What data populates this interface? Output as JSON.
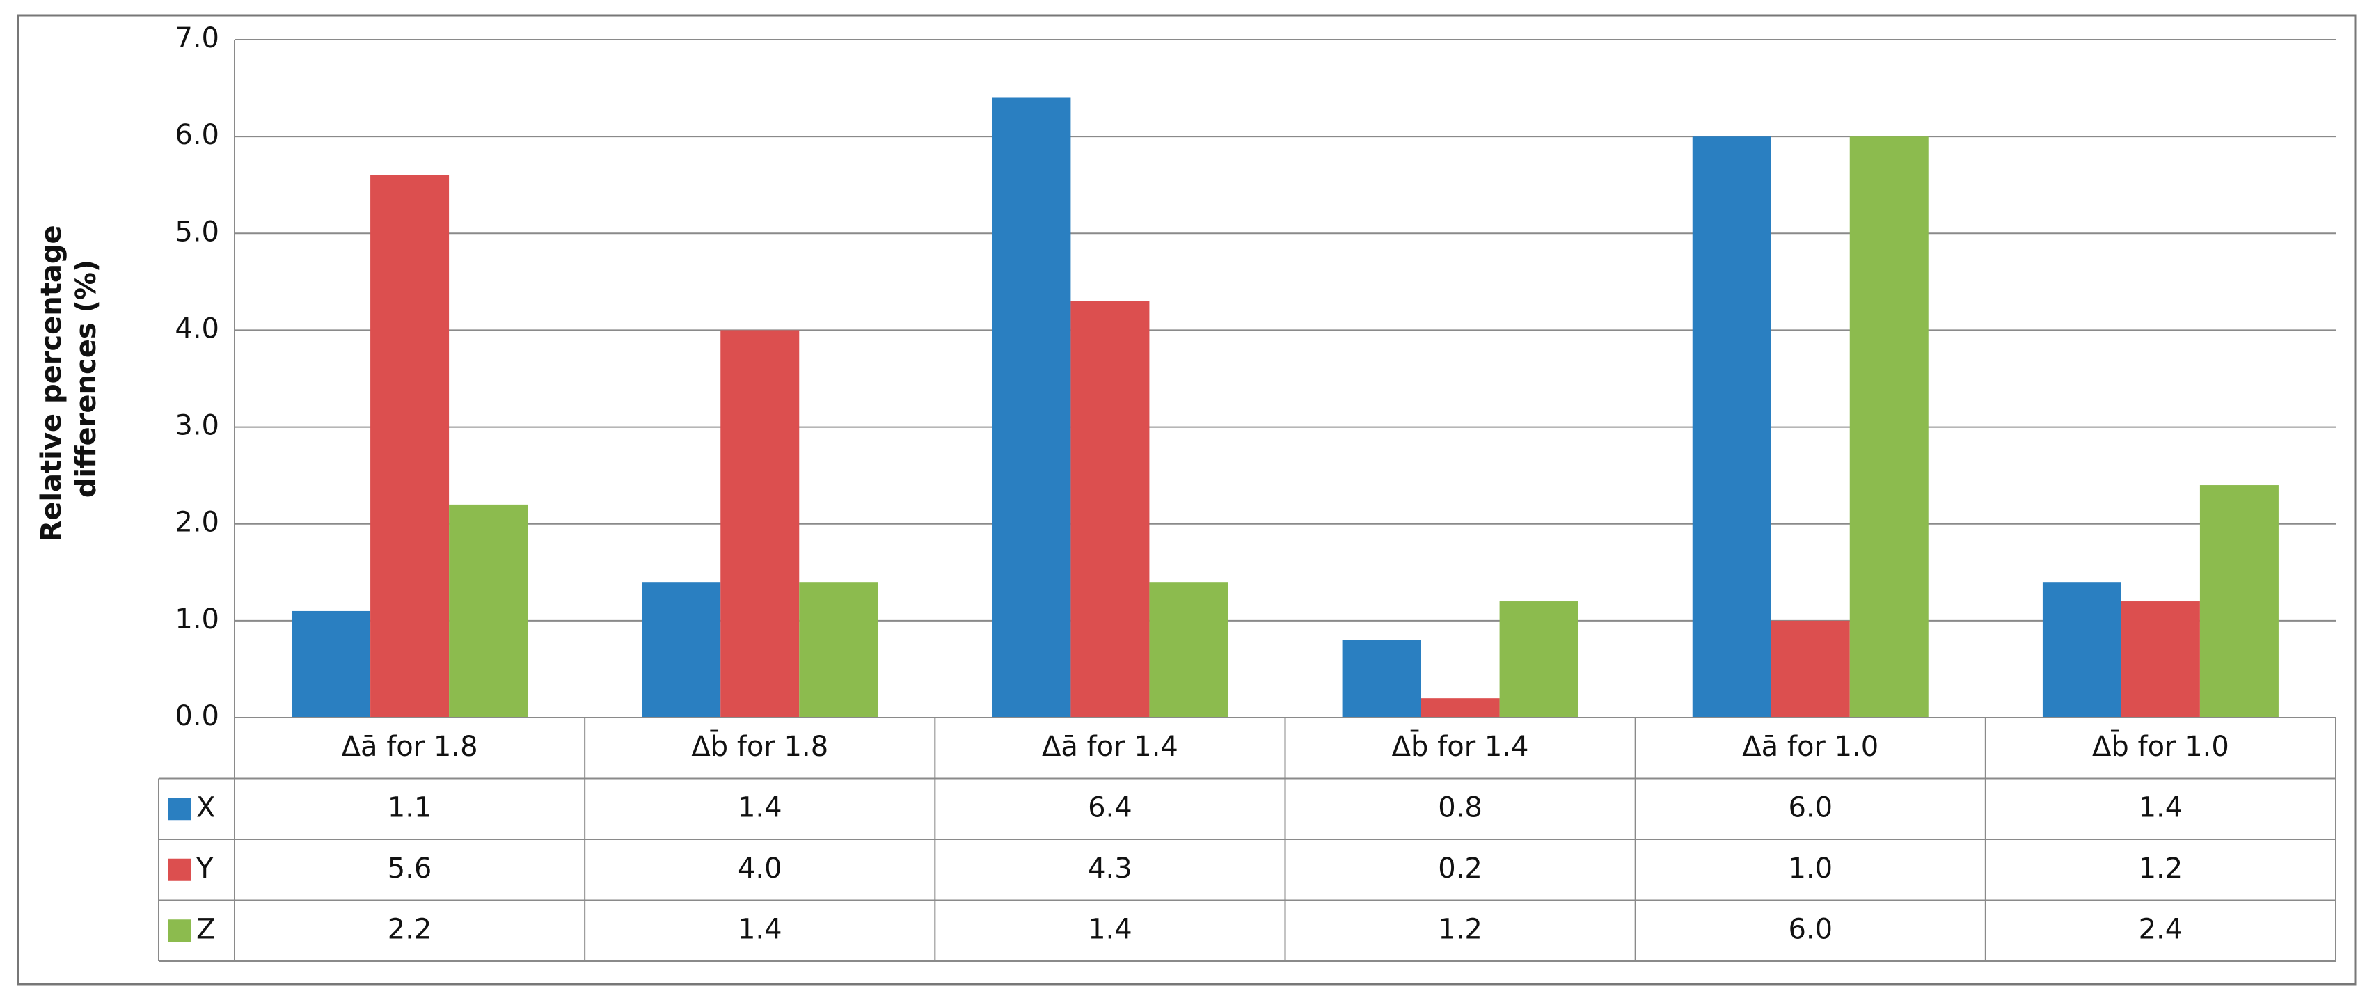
{
  "chart_data": {
    "type": "bar",
    "y_label": [
      "Relative percentage",
      "differences (%)"
    ],
    "categories": [
      "Δā for 1.8",
      "Δb̄ for 1.8",
      "Δā for 1.4",
      "Δb̄ for 1.4",
      "Δā for 1.0",
      "Δb̄ for 1.0"
    ],
    "series": [
      {
        "name": "X",
        "color": "#2a7fc1",
        "values": [
          1.1,
          1.4,
          6.4,
          0.8,
          6,
          1.4
        ],
        "value_labels": [
          "1.1",
          "1.4",
          "6.4",
          "0.8",
          "6.0",
          "1.4"
        ]
      },
      {
        "name": "Y",
        "color": "#dc4f4f",
        "values": [
          5.6,
          4,
          4.3,
          0.2,
          1,
          1.2
        ],
        "value_labels": [
          "5.6",
          "4.0",
          "4.3",
          "0.2",
          "1.0",
          "1.2"
        ]
      },
      {
        "name": "Z",
        "color": "#8cbb4e",
        "values": [
          2.2,
          1.4,
          1.4,
          1.2,
          6,
          2.4
        ],
        "value_labels": [
          "2.2",
          "1.4",
          "1.4",
          "1.2",
          "6.0",
          "2.4"
        ]
      }
    ],
    "ylim": [
      0,
      7
    ],
    "yticks": [
      {
        "value": 0,
        "label": "0.0"
      },
      {
        "value": 1,
        "label": "1.0"
      },
      {
        "value": 2,
        "label": "2.0"
      },
      {
        "value": 3,
        "label": "3.0"
      },
      {
        "value": 4,
        "label": "4.0"
      },
      {
        "value": 5,
        "label": "5.0"
      },
      {
        "value": 6,
        "label": "6.0"
      },
      {
        "value": 7,
        "label": "7.0"
      }
    ],
    "grid": true,
    "data_table": true
  }
}
